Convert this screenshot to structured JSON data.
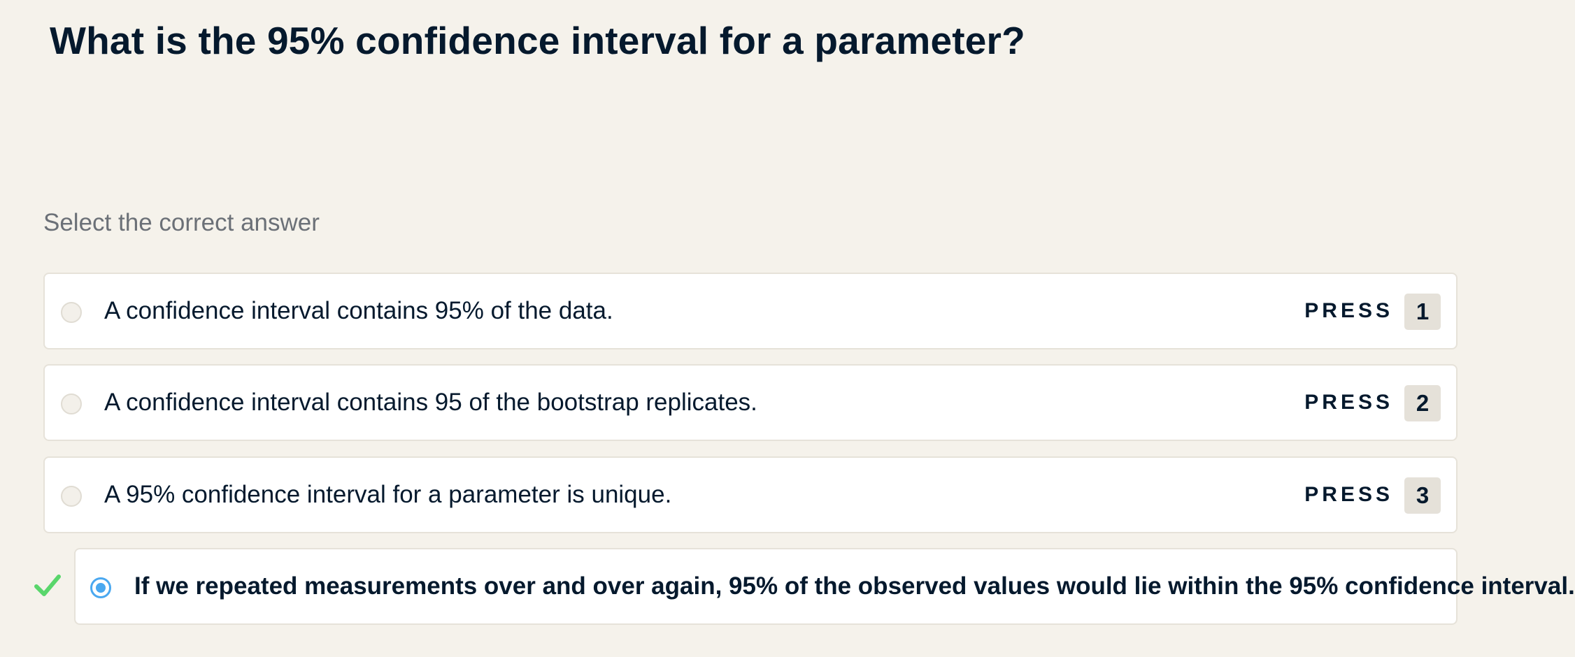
{
  "question": {
    "title": "What is the 95% confidence interval for a parameter?"
  },
  "instruction": "Select the correct answer",
  "options": [
    {
      "text": "A confidence interval contains 95% of the data.",
      "press_label": "PRESS",
      "key": "1",
      "selected": false
    },
    {
      "text": "A confidence interval contains 95 of the bootstrap replicates.",
      "press_label": "PRESS",
      "key": "2",
      "selected": false
    },
    {
      "text": "A 95% confidence interval for a parameter is unique.",
      "press_label": "PRESS",
      "key": "3",
      "selected": false
    },
    {
      "text": "If we repeated measurements over and over again, 95% of the observed values would lie within the 95% confidence interval.",
      "selected": true,
      "marked_correct": true
    }
  ],
  "icons": {
    "correct_mark": "check-icon"
  },
  "colors": {
    "background": "#f5f2eb",
    "text": "#05192d",
    "selected_radio": "#4aa8f0",
    "correct_check": "#59d66b"
  }
}
